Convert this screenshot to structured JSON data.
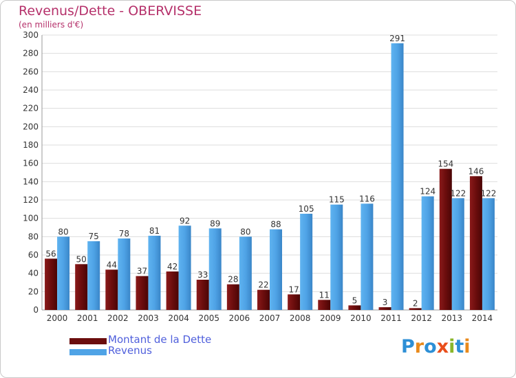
{
  "title": "Revenus/Dette - OBERVISSE",
  "subtitle": "(en milliers d'€)",
  "legend": [
    {
      "label": "Montant de la Dette",
      "color": "#6b0d0d"
    },
    {
      "label": "Revenus",
      "color": "#4fa3e6"
    }
  ],
  "logo": {
    "letters": [
      "P",
      "r",
      "o",
      "x",
      "i",
      "t",
      "i"
    ],
    "colors": [
      "#2d8fd6",
      "#e98a1c",
      "#2d8fd6",
      "#e94e1b",
      "#89b62a",
      "#2d8fd6",
      "#e98a1c"
    ]
  },
  "colors": {
    "dette": "#6b0d0d",
    "revenus": "#4fa3e6",
    "title": "#b5306a",
    "grid": "#dddddd"
  },
  "chart_data": {
    "type": "bar",
    "categories": [
      "2000",
      "2001",
      "2002",
      "2003",
      "2004",
      "2005",
      "2006",
      "2007",
      "2008",
      "2009",
      "2010",
      "2011",
      "2012",
      "2013",
      "2014"
    ],
    "series": [
      {
        "name": "Montant de la Dette",
        "values": [
          56,
          50,
          44,
          37,
          42,
          33,
          28,
          22,
          17,
          11,
          5,
          3,
          2,
          154,
          146
        ]
      },
      {
        "name": "Revenus",
        "values": [
          80,
          75,
          78,
          81,
          92,
          89,
          80,
          88,
          105,
          115,
          116,
          291,
          124,
          122,
          122
        ]
      }
    ],
    "yticks": [
      0,
      20,
      40,
      60,
      80,
      100,
      120,
      140,
      160,
      180,
      200,
      220,
      240,
      260,
      280,
      300
    ],
    "ylim": [
      0,
      300
    ],
    "grid": true,
    "legend_position": "bottom-left"
  }
}
